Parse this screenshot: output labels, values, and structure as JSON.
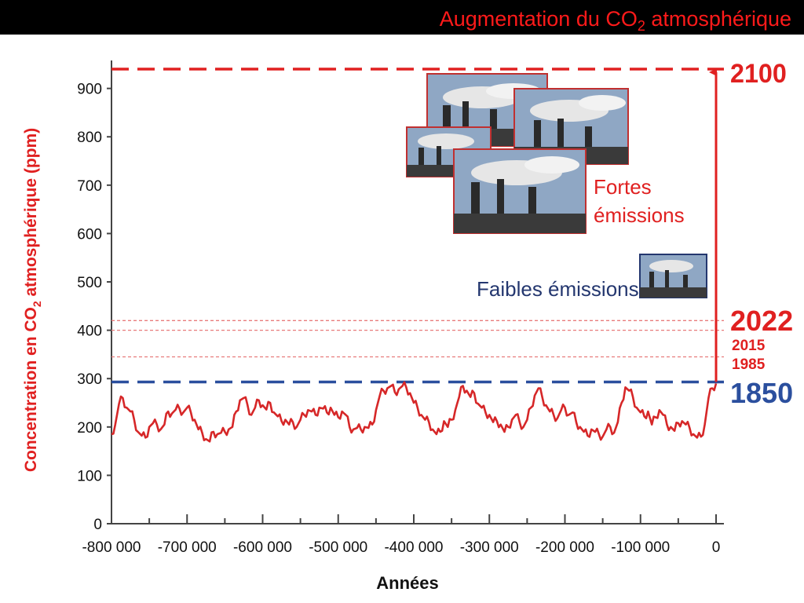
{
  "title": {
    "prefix": "Augmentation du CO",
    "subscript": "2",
    "suffix": " atmosphérique"
  },
  "chart_data": {
    "type": "line",
    "xlabel": "Années",
    "ylabel": {
      "prefix": "Concentration en CO",
      "subscript": "2",
      "suffix": " atmosphérique (ppm)"
    },
    "xlim": [
      -800000,
      0
    ],
    "ylim": [
      0,
      940
    ],
    "x_ticks": [
      -800000,
      -700000,
      -600000,
      -500000,
      -400000,
      -300000,
      -200000,
      -100000,
      0
    ],
    "x_tick_labels": [
      "-800 000",
      "-700 000",
      "-600 000",
      "-500 000",
      "-400 000",
      "-300 000",
      "-200 000",
      "-100 000",
      "0"
    ],
    "y_ticks": [
      0,
      100,
      200,
      300,
      400,
      500,
      600,
      700,
      800,
      900
    ],
    "y_tick_labels": [
      "0",
      "100",
      "200",
      "300",
      "400",
      "500",
      "600",
      "700",
      "800",
      "900"
    ],
    "grid": false,
    "series": [
      {
        "color": "#d62728",
        "x": [
          -800000,
          -795000,
          -790000,
          -785000,
          -780000,
          -775000,
          -770000,
          -765000,
          -760000,
          -755000,
          -750000,
          -745000,
          -740000,
          -735000,
          -730000,
          -725000,
          -720000,
          -715000,
          -710000,
          -705000,
          -700000,
          -695000,
          -690000,
          -685000,
          -680000,
          -675000,
          -670000,
          -665000,
          -660000,
          -655000,
          -650000,
          -645000,
          -640000,
          -635000,
          -630000,
          -625000,
          -620000,
          -615000,
          -610000,
          -605000,
          -600000,
          -595000,
          -590000,
          -585000,
          -580000,
          -575000,
          -570000,
          -565000,
          -560000,
          -555000,
          -550000,
          -545000,
          -540000,
          -535000,
          -530000,
          -525000,
          -520000,
          -515000,
          -510000,
          -505000,
          -500000,
          -495000,
          -490000,
          -485000,
          -480000,
          -475000,
          -470000,
          -465000,
          -460000,
          -455000,
          -450000,
          -445000,
          -440000,
          -435000,
          -430000,
          -425000,
          -420000,
          -415000,
          -410000,
          -405000,
          -400000,
          -395000,
          -390000,
          -385000,
          -380000,
          -375000,
          -370000,
          -365000,
          -360000,
          -355000,
          -350000,
          -345000,
          -340000,
          -335000,
          -330000,
          -325000,
          -320000,
          -315000,
          -310000,
          -305000,
          -300000,
          -295000,
          -290000,
          -285000,
          -280000,
          -275000,
          -270000,
          -265000,
          -260000,
          -255000,
          -250000,
          -245000,
          -240000,
          -235000,
          -230000,
          -225000,
          -220000,
          -215000,
          -210000,
          -205000,
          -200000,
          -195000,
          -190000,
          -185000,
          -180000,
          -175000,
          -170000,
          -165000,
          -160000,
          -155000,
          -150000,
          -145000,
          -140000,
          -135000,
          -130000,
          -125000,
          -120000,
          -115000,
          -110000,
          -105000,
          -100000,
          -95000,
          -90000,
          -85000,
          -80000,
          -75000,
          -70000,
          -65000,
          -60000,
          -55000,
          -50000,
          -45000,
          -40000,
          -35000,
          -30000,
          -25000,
          -20000,
          -15000,
          -10000,
          -5000,
          0
        ],
        "y": [
          185,
          205,
          248,
          260,
          240,
          232,
          215,
          190,
          182,
          178,
          200,
          208,
          205,
          195,
          205,
          232,
          228,
          236,
          238,
          230,
          240,
          230,
          215,
          195,
          188,
          175,
          170,
          190,
          185,
          188,
          190,
          195,
          200,
          232,
          255,
          260,
          245,
          225,
          240,
          255,
          245,
          236,
          250,
          230,
          222,
          212,
          215,
          205,
          210,
          200,
          215,
          225,
          235,
          232,
          225,
          240,
          238,
          230,
          240,
          225,
          220,
          232,
          225,
          200,
          195,
          198,
          195,
          200,
          198,
          205,
          235,
          265,
          275,
          280,
          285,
          272,
          278,
          285,
          282,
          270,
          250,
          240,
          225,
          215,
          210,
          195,
          185,
          190,
          212,
          200,
          215,
          235,
          262,
          285,
          275,
          262,
          270,
          248,
          240,
          230,
          225,
          210,
          212,
          205,
          190,
          200,
          215,
          225,
          210,
          200,
          215,
          240,
          265,
          280,
          262,
          245,
          232,
          225,
          218,
          235,
          240,
          225,
          230,
          210,
          200,
          190,
          182,
          195,
          190,
          185,
          180,
          195,
          200,
          188,
          210,
          250,
          282,
          275,
          262,
          240,
          230,
          222,
          232,
          205,
          220,
          235,
          225,
          205,
          200,
          192,
          208,
          212,
          205,
          198,
          185,
          178,
          180,
          205,
          260,
          280,
          290
        ]
      }
    ],
    "reference_lines": [
      {
        "year": "2100",
        "value": 940,
        "color": "#e02020",
        "style": "dashed"
      },
      {
        "year": "2022",
        "value": 420,
        "color": "#e87b7b",
        "style": "dotted"
      },
      {
        "year": "2015",
        "value": 400,
        "color": "#e87b7b",
        "style": "dotted"
      },
      {
        "year": "1985",
        "value": 345,
        "color": "#e87b7b",
        "style": "dotted"
      },
      {
        "year": "1850",
        "value": 293,
        "color": "#2b4f9e",
        "style": "dashed"
      }
    ],
    "arrow": {
      "from": 293,
      "to": 940,
      "color": "#e02020"
    },
    "annotations": {
      "high_label_line1": "Fortes",
      "high_label_line2": "émissions",
      "low_label": "Faibles émissions"
    }
  },
  "colors": {
    "red": "#e02020",
    "light_red": "#e87b7b",
    "blue": "#2b4f9e",
    "navy_text": "#24376f",
    "title_red": "#ff1a1a",
    "line_red": "#d62728"
  }
}
